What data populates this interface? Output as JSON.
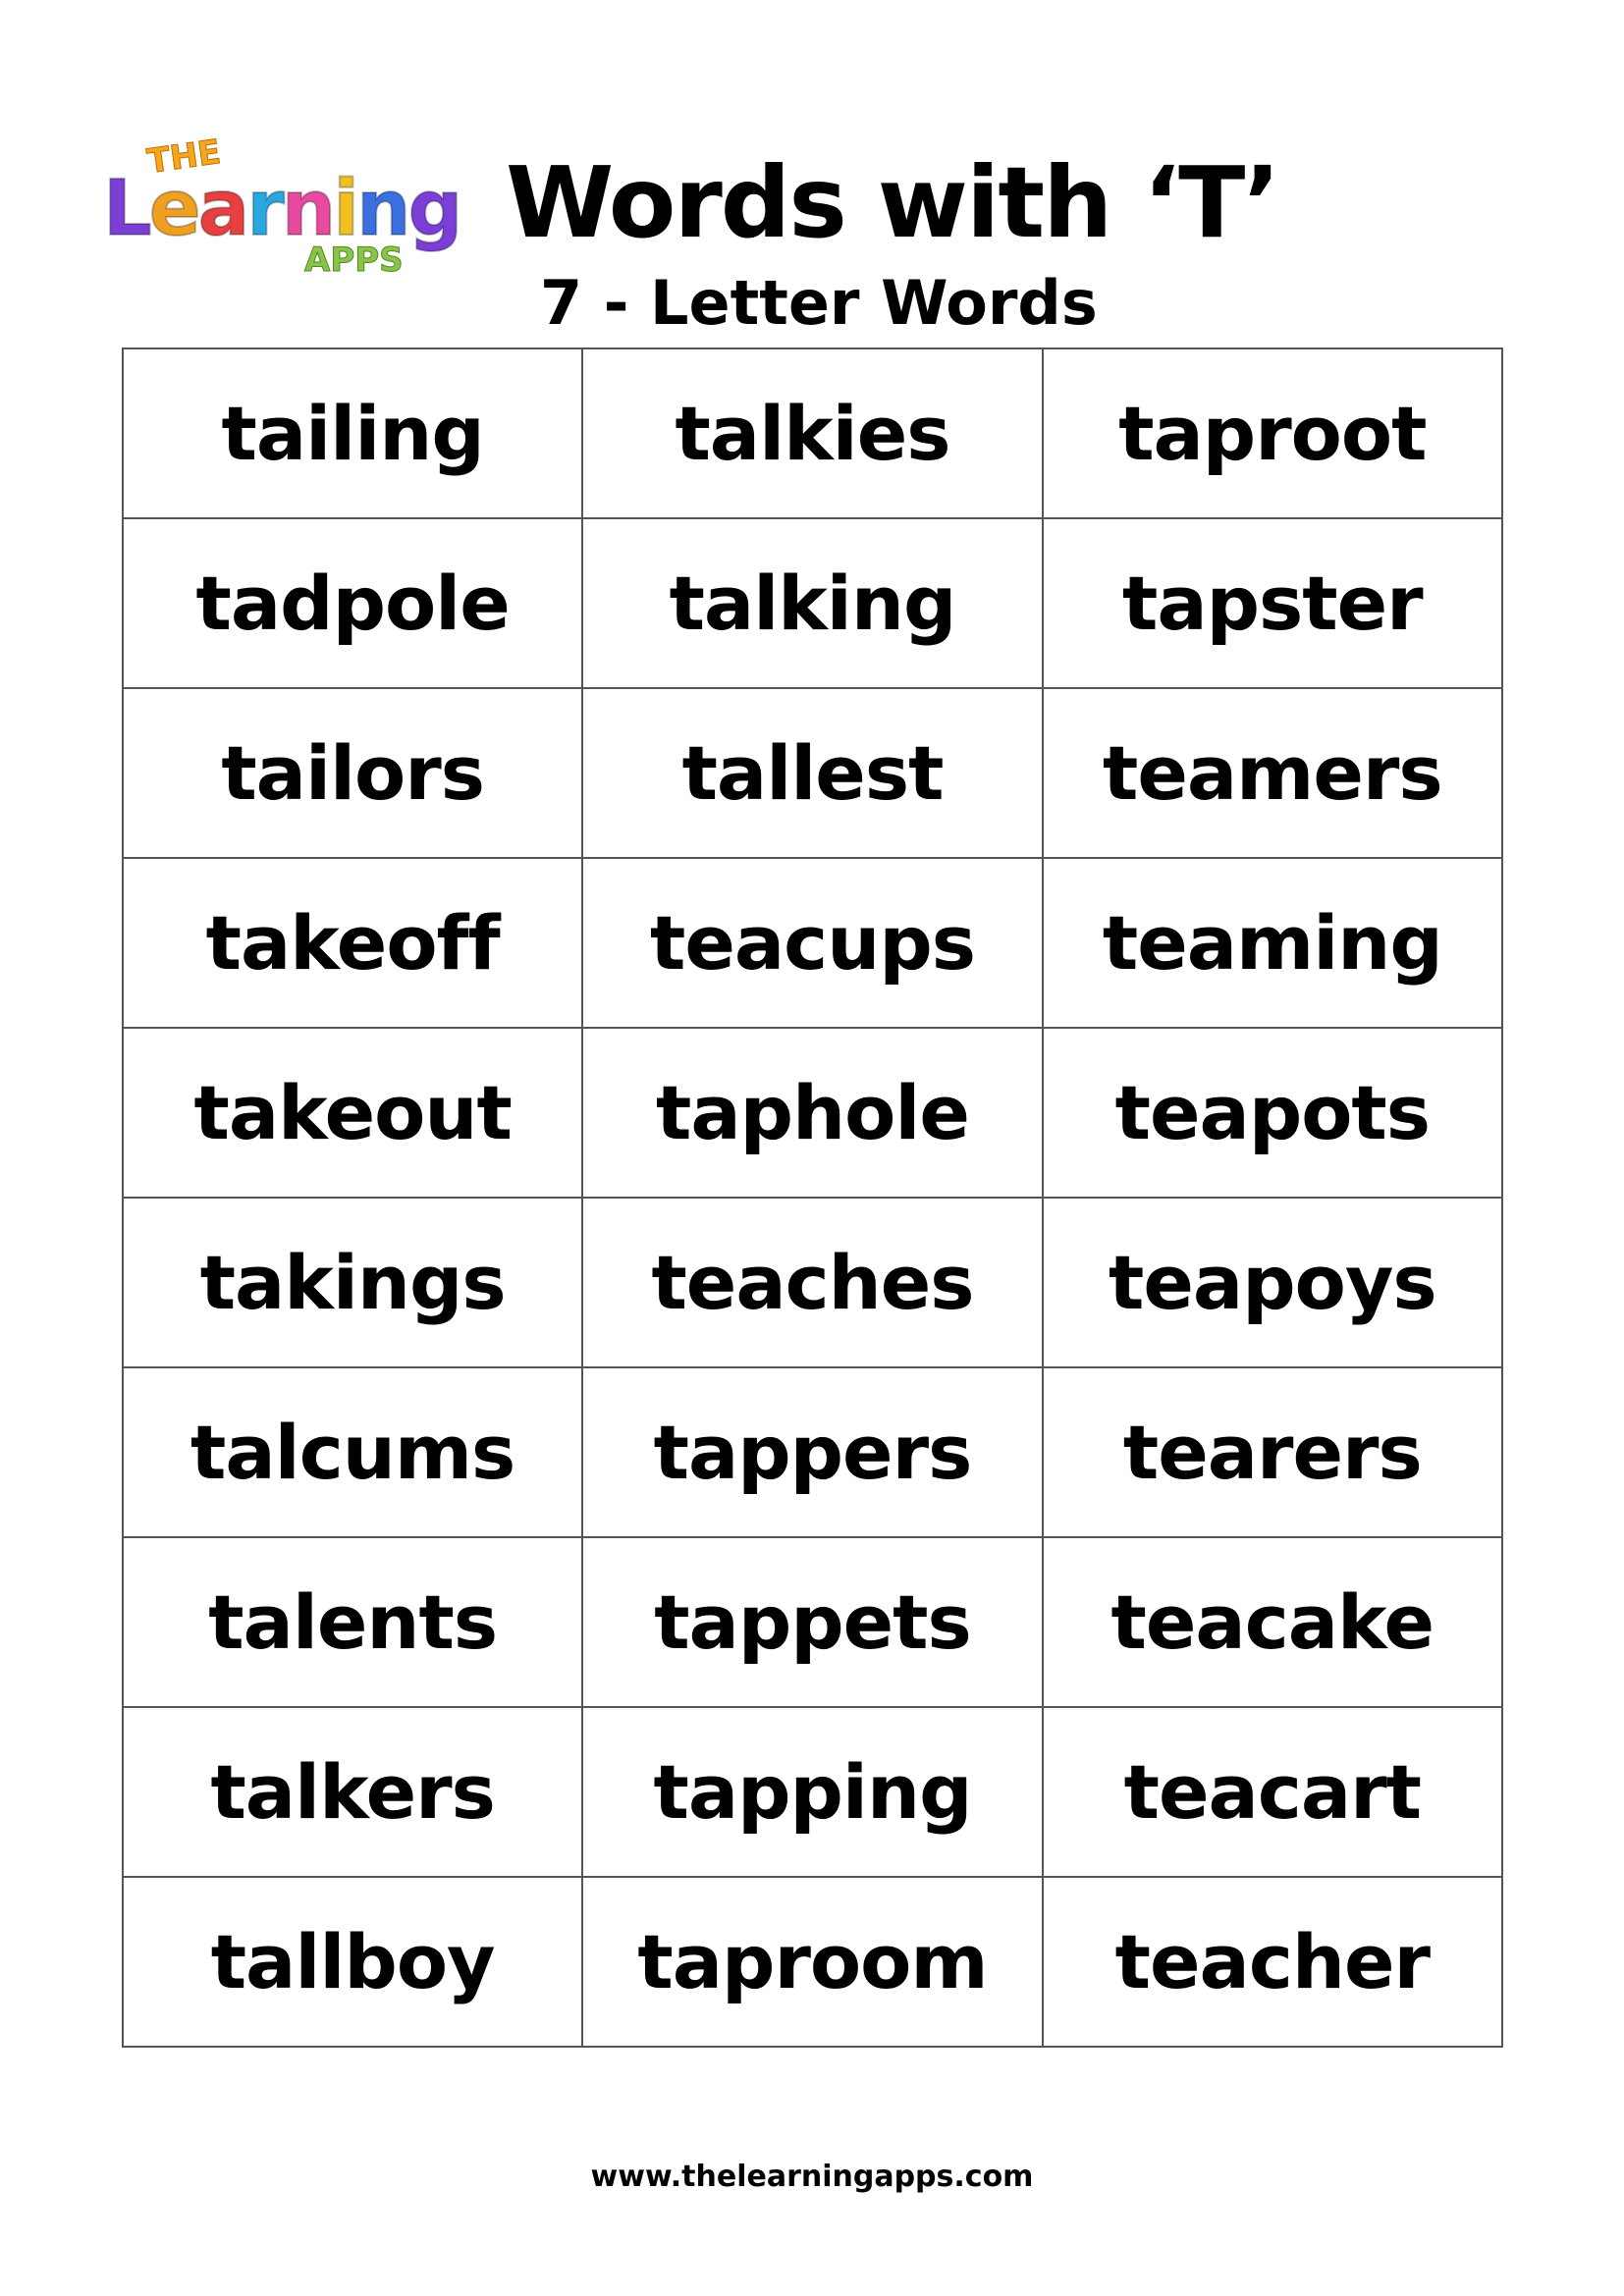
{
  "logo": {
    "the": "THE",
    "learning": "Learning",
    "apps": "APPS"
  },
  "title": "Words with ‘T’",
  "subtitle": "7 - Letter Words",
  "colors": {
    "logo_letters": [
      "#7b3fd6",
      "#f0a020",
      "#e84040",
      "#29a8e0",
      "#e84aa0",
      "#f0c020",
      "#3a6fe0"
    ]
  },
  "rows": [
    [
      "tailing",
      "talkies",
      "taproot"
    ],
    [
      "tadpole",
      "talking",
      "tapster"
    ],
    [
      "tailors",
      "tallest",
      "teamers"
    ],
    [
      "takeoff",
      "teacups",
      "teaming"
    ],
    [
      "takeout",
      "taphole",
      "teapots"
    ],
    [
      "takings",
      "teaches",
      "teapoys"
    ],
    [
      "talcums",
      "tappers",
      "tearers"
    ],
    [
      "talents",
      "tappets",
      "teacake"
    ],
    [
      "talkers",
      "tapping",
      "teacart"
    ],
    [
      "tallboy",
      "taproom",
      "teacher"
    ]
  ],
  "footer": "www.thelearningapps.com"
}
